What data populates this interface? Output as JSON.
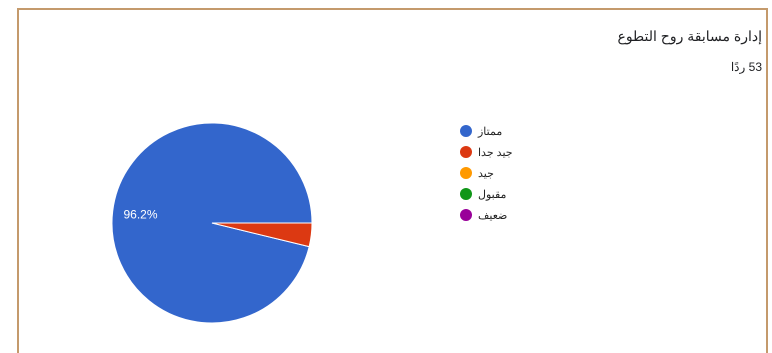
{
  "header": {
    "title": "إدارة مسابقة روح التطوع",
    "responses": "53 ردًا"
  },
  "chart_data": {
    "type": "pie",
    "title": "إدارة مسابقة روح التطوع",
    "categories": [
      "ممتاز",
      "جيد جدا",
      "جيد",
      "مقبول",
      "ضعيف"
    ],
    "values": [
      96.2,
      3.8,
      0,
      0,
      0
    ],
    "colors": [
      "#3366cc",
      "#dc3912",
      "#ff9900",
      "#109618",
      "#990099"
    ],
    "data_labels": [
      "96.2%",
      "",
      "",
      "",
      ""
    ],
    "legend_position": "right"
  }
}
